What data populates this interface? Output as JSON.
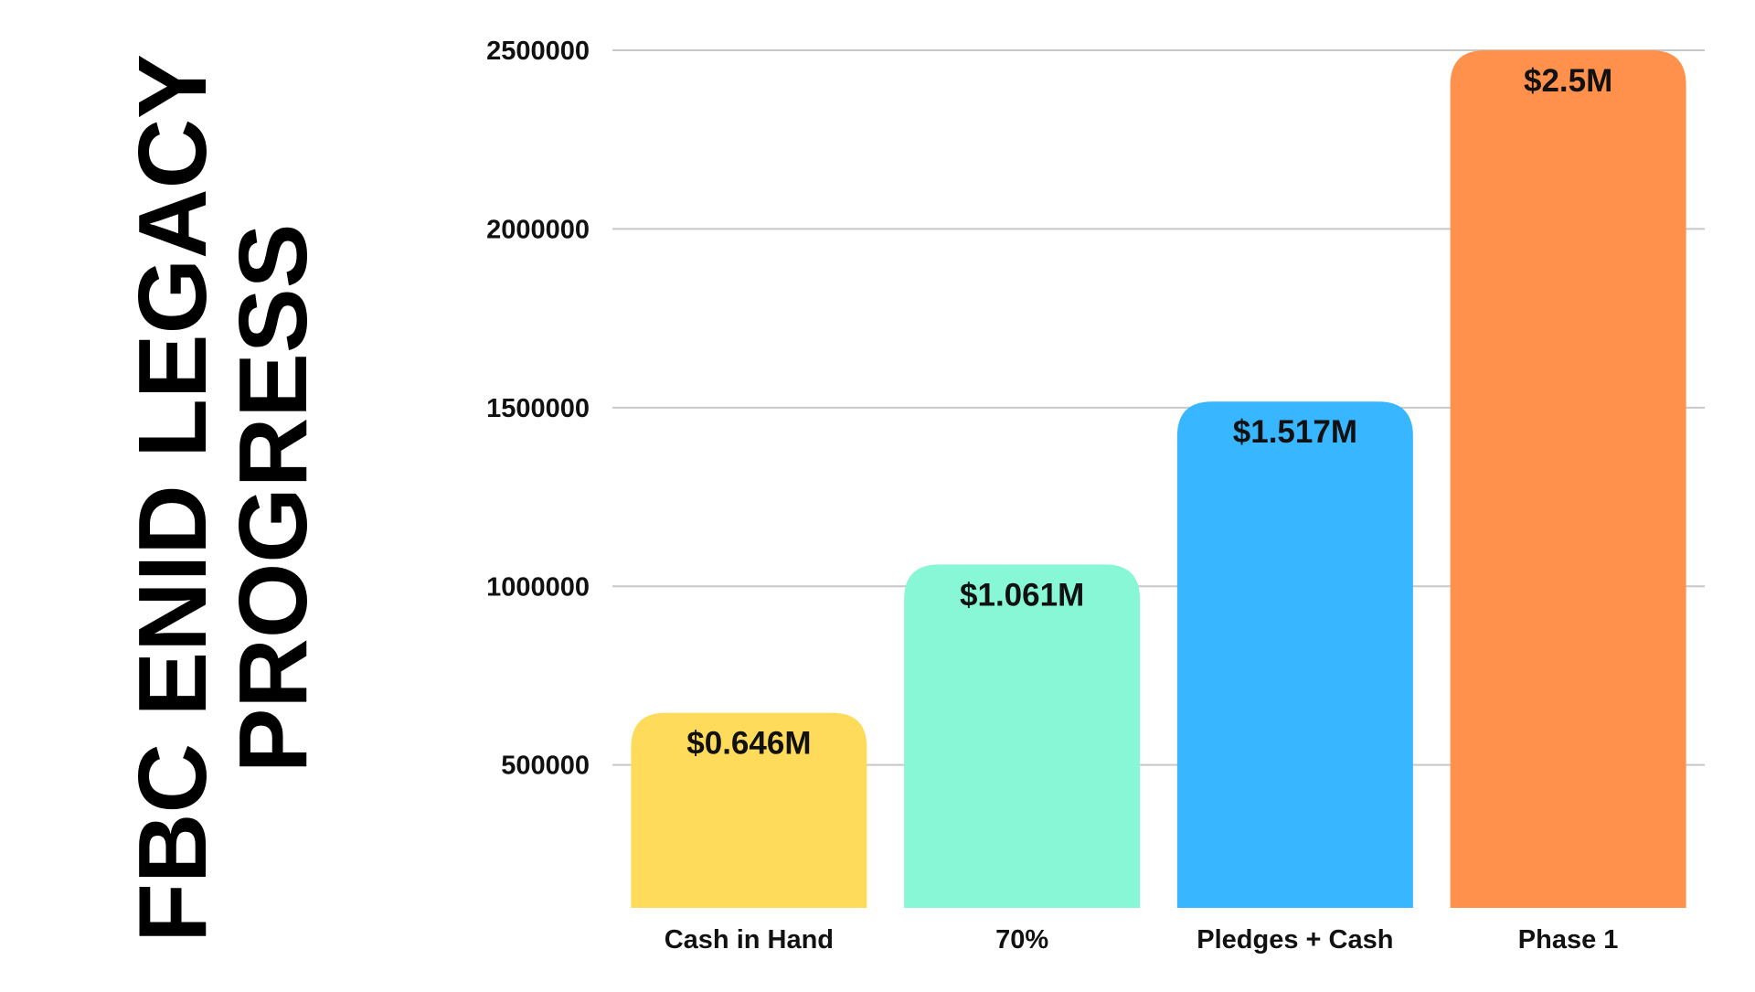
{
  "title_lines": [
    "FBC ENID LEGACY",
    "PROGRESS"
  ],
  "chart_data": {
    "type": "bar",
    "categories": [
      "Cash in Hand",
      "70%",
      "Pledges + Cash",
      "Phase 1"
    ],
    "values": [
      646000,
      1061000,
      1517000,
      2500000
    ],
    "data_labels": [
      "$0.646M",
      "$1.061M",
      "$1.517M",
      "$2.5M"
    ],
    "bar_colors": [
      "#FEDB5B",
      "#87F7D5",
      "#38B6FF",
      "#FF914D"
    ],
    "yticks": [
      500000,
      1000000,
      1500000,
      2000000,
      2500000
    ],
    "ytick_labels": [
      "500000",
      "1000000",
      "1500000",
      "2000000",
      "2500000"
    ],
    "ylim": [
      100000,
      2500000
    ],
    "grid": true,
    "legend": "none"
  }
}
